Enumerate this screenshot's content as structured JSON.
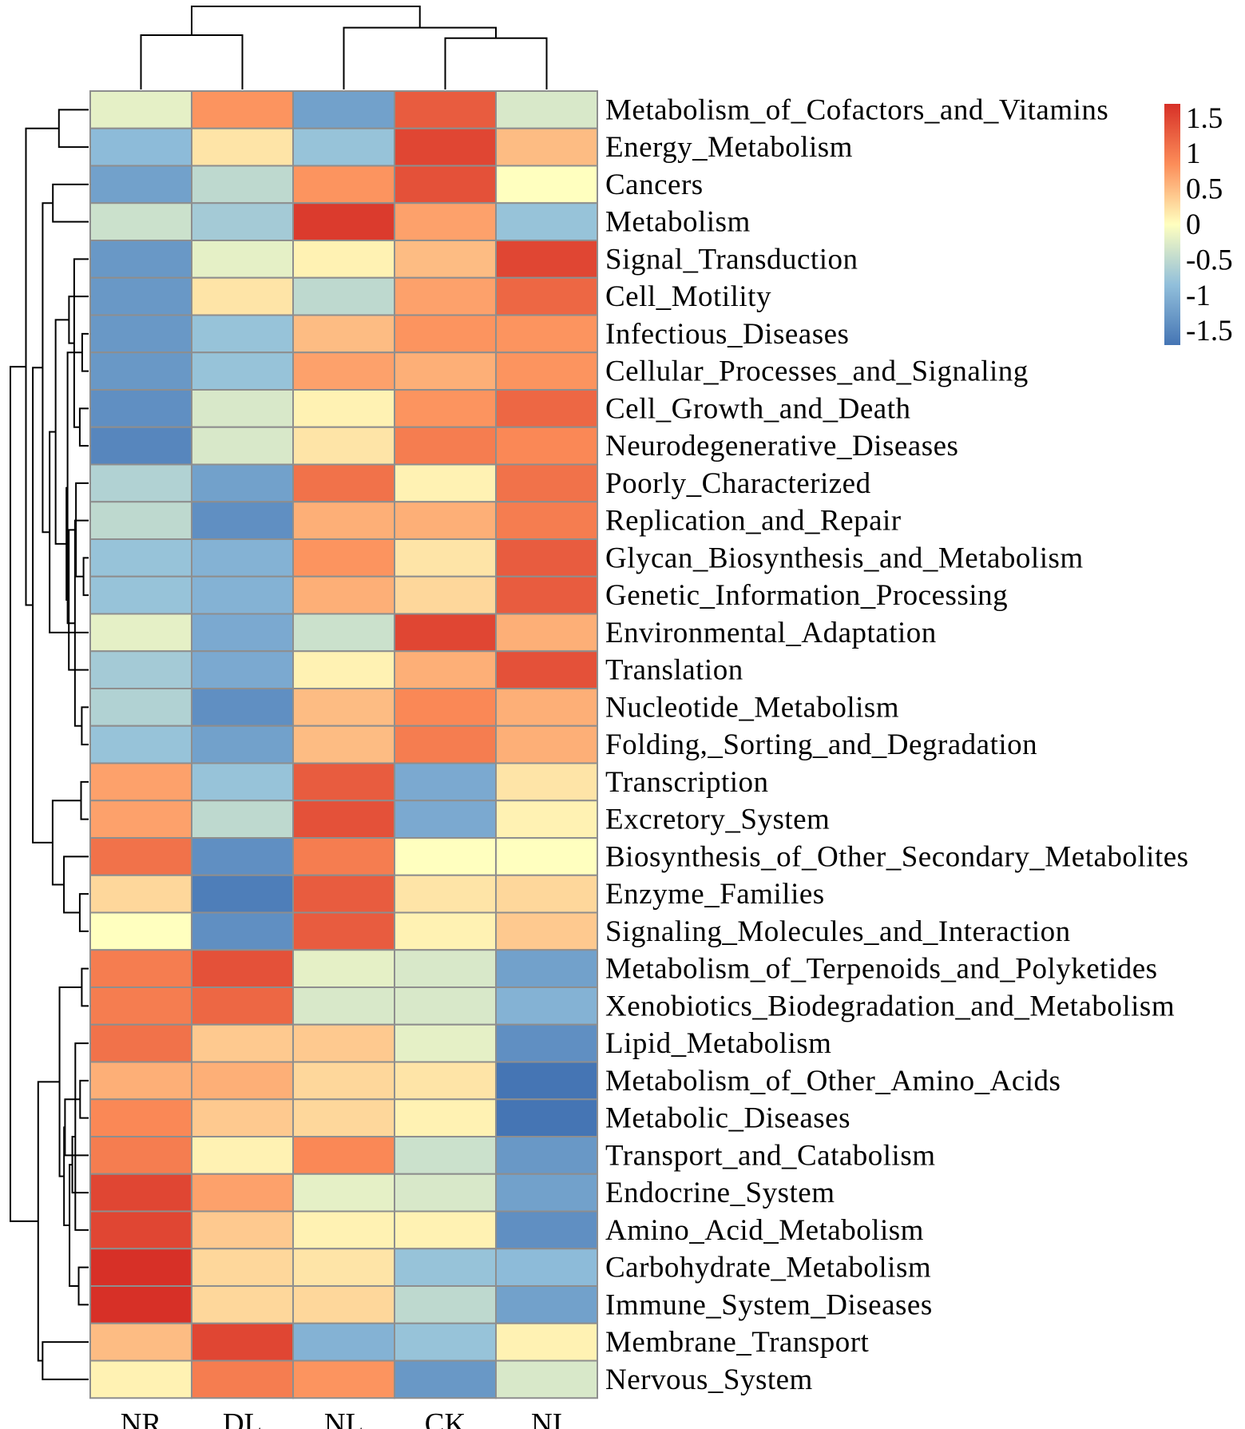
{
  "chart_data": {
    "type": "heatmap",
    "title": "",
    "columns": [
      "NR",
      "DL",
      "NL",
      "CK",
      "NI"
    ],
    "rows": [
      "Metabolism_of_Cofactors_and_Vitamins",
      "Energy_Metabolism",
      "Cancers",
      "Metabolism",
      "Signal_Transduction",
      "Cell_Motility",
      "Infectious_Diseases",
      "Cellular_Processes_and_Signaling",
      "Cell_Growth_and_Death",
      "Neurodegenerative_Diseases",
      "Poorly_Characterized",
      "Replication_and_Repair",
      "Glycan_Biosynthesis_and_Metabolism",
      "Genetic_Information_Processing",
      "Environmental_Adaptation",
      "Translation",
      "Nucleotide_Metabolism",
      "Folding,_Sorting_and_Degradation",
      "Transcription",
      "Excretory_System",
      "Biosynthesis_of_Other_Secondary_Metabolites",
      "Enzyme_Families",
      "Signaling_Molecules_and_Interaction",
      "Metabolism_of_Terpenoids_and_Polyketides",
      "Xenobiotics_Biodegradation_and_Metabolism",
      "Lipid_Metabolism",
      "Metabolism_of_Other_Amino_Acids",
      "Metabolic_Diseases",
      "Transport_and_Catabolism",
      "Endocrine_System",
      "Amino_Acid_Metabolism",
      "Carbohydrate_Metabolism",
      "Immune_System_Diseases",
      "Membrane_Transport",
      "Nervous_System"
    ],
    "values": [
      [
        -0.2,
        0.8,
        -1.2,
        1.3,
        -0.3
      ],
      [
        -0.9,
        0.2,
        -0.8,
        1.5,
        0.5
      ],
      [
        -1.2,
        -0.5,
        0.8,
        1.4,
        0.0
      ],
      [
        -0.4,
        -0.7,
        1.6,
        0.7,
        -0.8
      ],
      [
        -1.3,
        -0.2,
        0.1,
        0.5,
        1.5
      ],
      [
        -1.3,
        0.2,
        -0.5,
        0.7,
        1.2
      ],
      [
        -1.3,
        -0.8,
        0.5,
        0.8,
        0.8
      ],
      [
        -1.3,
        -0.8,
        0.7,
        0.6,
        0.8
      ],
      [
        -1.4,
        -0.3,
        0.1,
        0.8,
        1.2
      ],
      [
        -1.5,
        -0.3,
        0.2,
        1.0,
        0.9
      ],
      [
        -0.6,
        -1.2,
        1.1,
        0.1,
        1.1
      ],
      [
        -0.5,
        -1.4,
        0.6,
        0.6,
        1.0
      ],
      [
        -0.8,
        -1.0,
        0.8,
        0.2,
        1.3
      ],
      [
        -0.8,
        -1.0,
        0.6,
        0.3,
        1.3
      ],
      [
        -0.2,
        -1.1,
        -0.4,
        1.5,
        0.6
      ],
      [
        -0.7,
        -1.1,
        0.1,
        0.6,
        1.4
      ],
      [
        -0.6,
        -1.4,
        0.5,
        0.9,
        0.6
      ],
      [
        -0.8,
        -1.2,
        0.5,
        1.0,
        0.6
      ],
      [
        0.7,
        -0.8,
        1.3,
        -1.1,
        0.2
      ],
      [
        0.7,
        -0.5,
        1.4,
        -1.1,
        0.1
      ],
      [
        1.1,
        -1.4,
        1.0,
        0.0,
        0.0
      ],
      [
        0.3,
        -1.6,
        1.3,
        0.2,
        0.3
      ],
      [
        0.0,
        -1.4,
        1.3,
        0.1,
        0.4
      ],
      [
        1.0,
        1.4,
        -0.2,
        -0.3,
        -1.2
      ],
      [
        1.0,
        1.2,
        -0.3,
        -0.3,
        -1.0
      ],
      [
        1.1,
        0.4,
        0.4,
        -0.2,
        -1.4
      ],
      [
        0.6,
        0.6,
        0.3,
        0.2,
        -1.7
      ],
      [
        0.9,
        0.4,
        0.3,
        0.1,
        -1.7
      ],
      [
        1.0,
        0.1,
        0.9,
        -0.4,
        -1.3
      ],
      [
        1.5,
        0.7,
        -0.2,
        -0.3,
        -1.2
      ],
      [
        1.5,
        0.4,
        0.1,
        0.1,
        -1.4
      ],
      [
        1.7,
        0.3,
        0.2,
        -0.8,
        -0.9
      ],
      [
        1.7,
        0.3,
        0.3,
        -0.5,
        -1.2
      ],
      [
        0.5,
        1.5,
        -1.0,
        -0.8,
        0.1
      ],
      [
        0.1,
        1.0,
        0.8,
        -1.3,
        -0.3
      ]
    ],
    "color_scale": {
      "low": "#4575b4",
      "mid": "#ffffbf",
      "high": "#d73027",
      "range": [
        -1.7,
        1.7
      ]
    },
    "legend": {
      "ticks": [
        1.5,
        1,
        0.5,
        0,
        -0.5,
        -1,
        -1.5
      ],
      "tick_labels": [
        "1.5",
        "1",
        "0.5",
        "0",
        "-0.5",
        "-1",
        "-1.5"
      ],
      "placement": "top-right"
    }
  }
}
